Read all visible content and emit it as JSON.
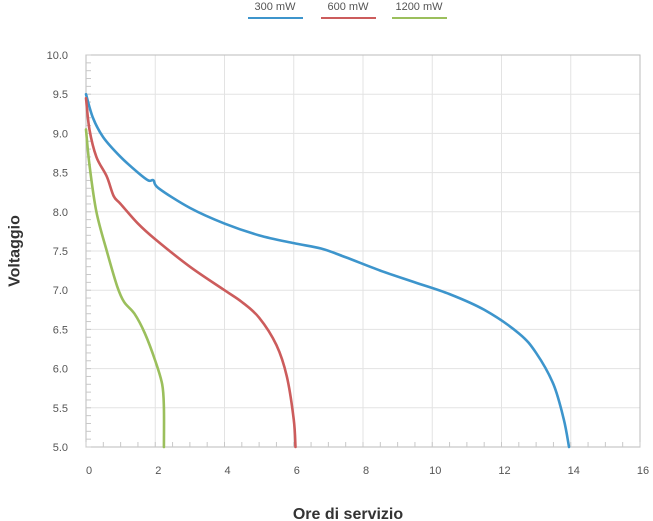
{
  "chart_data": {
    "type": "line",
    "xlabel": "Ore di servizio",
    "ylabel": "Voltaggio",
    "xlim": [
      0,
      16
    ],
    "ylim": [
      5.0,
      10.0
    ],
    "x_ticks": [
      "0",
      "2",
      "4",
      "6",
      "8",
      "10",
      "12",
      "14",
      "16"
    ],
    "y_ticks": [
      "5.0",
      "5.5",
      "6.0",
      "6.5",
      "7.0",
      "7.5",
      "8.0",
      "8.5",
      "9.0",
      "9.5",
      "10.0"
    ],
    "grid": true,
    "legend_position": "top",
    "series": [
      {
        "name": "300 mW",
        "color": "#3d95cc",
        "points": [
          [
            0,
            9.5
          ],
          [
            0.2,
            9.2
          ],
          [
            0.5,
            8.95
          ],
          [
            1.0,
            8.7
          ],
          [
            1.5,
            8.5
          ],
          [
            1.8,
            8.4
          ],
          [
            1.95,
            8.4
          ],
          [
            2.1,
            8.3
          ],
          [
            3.0,
            8.05
          ],
          [
            4.0,
            7.85
          ],
          [
            5.0,
            7.7
          ],
          [
            6.0,
            7.6
          ],
          [
            6.8,
            7.53
          ],
          [
            7.5,
            7.42
          ],
          [
            8.5,
            7.25
          ],
          [
            9.5,
            7.1
          ],
          [
            10.5,
            6.95
          ],
          [
            11.5,
            6.75
          ],
          [
            12.5,
            6.45
          ],
          [
            13.0,
            6.2
          ],
          [
            13.5,
            5.8
          ],
          [
            13.8,
            5.35
          ],
          [
            13.95,
            5.0
          ]
        ]
      },
      {
        "name": "600 mW",
        "color": "#cc5c5c",
        "points": [
          [
            0,
            9.45
          ],
          [
            0.1,
            9.05
          ],
          [
            0.3,
            8.7
          ],
          [
            0.6,
            8.45
          ],
          [
            0.8,
            8.2
          ],
          [
            1.0,
            8.1
          ],
          [
            1.5,
            7.85
          ],
          [
            2.0,
            7.65
          ],
          [
            3.0,
            7.3
          ],
          [
            4.0,
            7.0
          ],
          [
            4.5,
            6.85
          ],
          [
            5.0,
            6.65
          ],
          [
            5.5,
            6.3
          ],
          [
            5.8,
            5.9
          ],
          [
            6.0,
            5.35
          ],
          [
            6.05,
            5.0
          ]
        ]
      },
      {
        "name": "1200 mW",
        "color": "#9bbf5c",
        "points": [
          [
            0,
            9.05
          ],
          [
            0.1,
            8.6
          ],
          [
            0.3,
            8.0
          ],
          [
            0.6,
            7.5
          ],
          [
            0.9,
            7.05
          ],
          [
            1.1,
            6.85
          ],
          [
            1.4,
            6.7
          ],
          [
            1.7,
            6.45
          ],
          [
            2.0,
            6.1
          ],
          [
            2.2,
            5.8
          ],
          [
            2.25,
            5.5
          ],
          [
            2.25,
            5.0
          ]
        ]
      }
    ]
  }
}
